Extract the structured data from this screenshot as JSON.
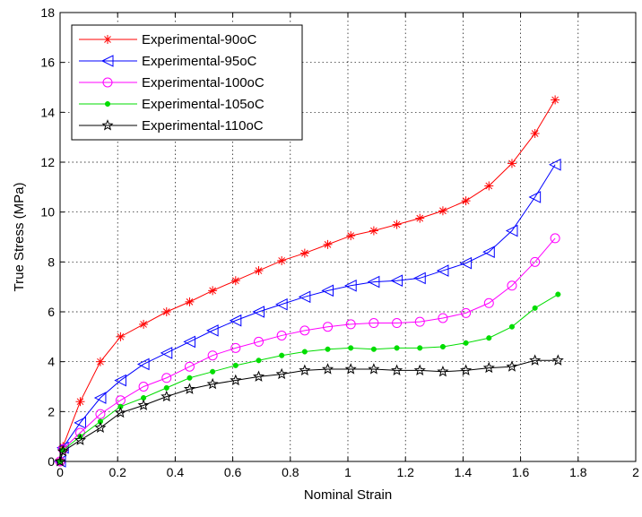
{
  "chart_data": {
    "type": "line",
    "title": "",
    "xlabel": "Nominal Strain",
    "ylabel": "True Stress (MPa)",
    "xlim": [
      0,
      2
    ],
    "ylim": [
      0,
      18
    ],
    "xticks": [
      0,
      0.2,
      0.4,
      0.6,
      0.8,
      1,
      1.2,
      1.4,
      1.6,
      1.8,
      2
    ],
    "xtick_labels": [
      "0",
      "0.2",
      "0.4",
      "0.6",
      "0.8",
      "1",
      "1.2",
      "1.4",
      "1.6",
      "1.8",
      "2"
    ],
    "yticks": [
      0,
      2,
      4,
      6,
      8,
      10,
      12,
      14,
      16,
      18
    ],
    "ytick_labels": [
      "0",
      "2",
      "4",
      "6",
      "8",
      "10",
      "12",
      "14",
      "16",
      "18"
    ],
    "grid": true,
    "legend_position": "top-left",
    "series": [
      {
        "name": "Experimental-90oC",
        "color": "#ff0000",
        "marker": "asterisk",
        "x": [
          0,
          0.01,
          0.07,
          0.14,
          0.21,
          0.29,
          0.37,
          0.45,
          0.53,
          0.61,
          0.69,
          0.77,
          0.85,
          0.93,
          1.01,
          1.09,
          1.17,
          1.25,
          1.33,
          1.41,
          1.49,
          1.57,
          1.65,
          1.72
        ],
        "y": [
          0,
          0.6,
          2.4,
          4.0,
          5.0,
          5.5,
          6.0,
          6.4,
          6.85,
          7.25,
          7.65,
          8.05,
          8.35,
          8.7,
          9.05,
          9.25,
          9.5,
          9.75,
          10.05,
          10.45,
          11.05,
          11.95,
          13.15,
          14.5
        ]
      },
      {
        "name": "Experimental-95oC",
        "color": "#0000ff",
        "marker": "triangle-left",
        "x": [
          0,
          0.01,
          0.07,
          0.14,
          0.21,
          0.29,
          0.37,
          0.45,
          0.53,
          0.61,
          0.69,
          0.77,
          0.85,
          0.93,
          1.01,
          1.09,
          1.17,
          1.25,
          1.33,
          1.41,
          1.49,
          1.57,
          1.65,
          1.72
        ],
        "y": [
          0,
          0.55,
          1.55,
          2.55,
          3.25,
          3.9,
          4.35,
          4.8,
          5.25,
          5.65,
          6.0,
          6.3,
          6.6,
          6.85,
          7.05,
          7.2,
          7.25,
          7.35,
          7.65,
          7.95,
          8.4,
          9.25,
          10.6,
          11.9
        ]
      },
      {
        "name": "Experimental-100oC",
        "color": "#ff00ff",
        "marker": "circle",
        "x": [
          0,
          0.01,
          0.07,
          0.14,
          0.21,
          0.29,
          0.37,
          0.45,
          0.53,
          0.61,
          0.69,
          0.77,
          0.85,
          0.93,
          1.01,
          1.09,
          1.17,
          1.25,
          1.33,
          1.41,
          1.49,
          1.57,
          1.65,
          1.72
        ],
        "y": [
          0,
          0.5,
          1.15,
          1.9,
          2.45,
          3.0,
          3.35,
          3.8,
          4.25,
          4.55,
          4.8,
          5.05,
          5.25,
          5.4,
          5.5,
          5.55,
          5.55,
          5.6,
          5.75,
          5.95,
          6.35,
          7.05,
          8.0,
          8.95
        ]
      },
      {
        "name": "Experimental-105oC",
        "color": "#00dd00",
        "marker": "dot",
        "x": [
          0,
          0.01,
          0.07,
          0.14,
          0.21,
          0.29,
          0.37,
          0.45,
          0.53,
          0.61,
          0.69,
          0.77,
          0.85,
          0.93,
          1.01,
          1.09,
          1.17,
          1.25,
          1.33,
          1.41,
          1.49,
          1.57,
          1.65,
          1.73
        ],
        "y": [
          0,
          0.45,
          1.0,
          1.6,
          2.2,
          2.55,
          2.95,
          3.35,
          3.6,
          3.85,
          4.05,
          4.25,
          4.4,
          4.5,
          4.55,
          4.5,
          4.55,
          4.55,
          4.6,
          4.75,
          4.95,
          5.4,
          6.15,
          6.7
        ]
      },
      {
        "name": "Experimental-110oC",
        "color": "#000000",
        "marker": "star",
        "x": [
          0,
          0.01,
          0.07,
          0.14,
          0.21,
          0.29,
          0.37,
          0.45,
          0.53,
          0.61,
          0.69,
          0.77,
          0.85,
          0.93,
          1.01,
          1.09,
          1.17,
          1.25,
          1.33,
          1.41,
          1.49,
          1.57,
          1.65,
          1.73
        ],
        "y": [
          0,
          0.4,
          0.85,
          1.35,
          1.95,
          2.25,
          2.6,
          2.9,
          3.1,
          3.25,
          3.4,
          3.5,
          3.65,
          3.7,
          3.7,
          3.7,
          3.65,
          3.65,
          3.6,
          3.65,
          3.75,
          3.8,
          4.05,
          4.05
        ]
      }
    ]
  }
}
